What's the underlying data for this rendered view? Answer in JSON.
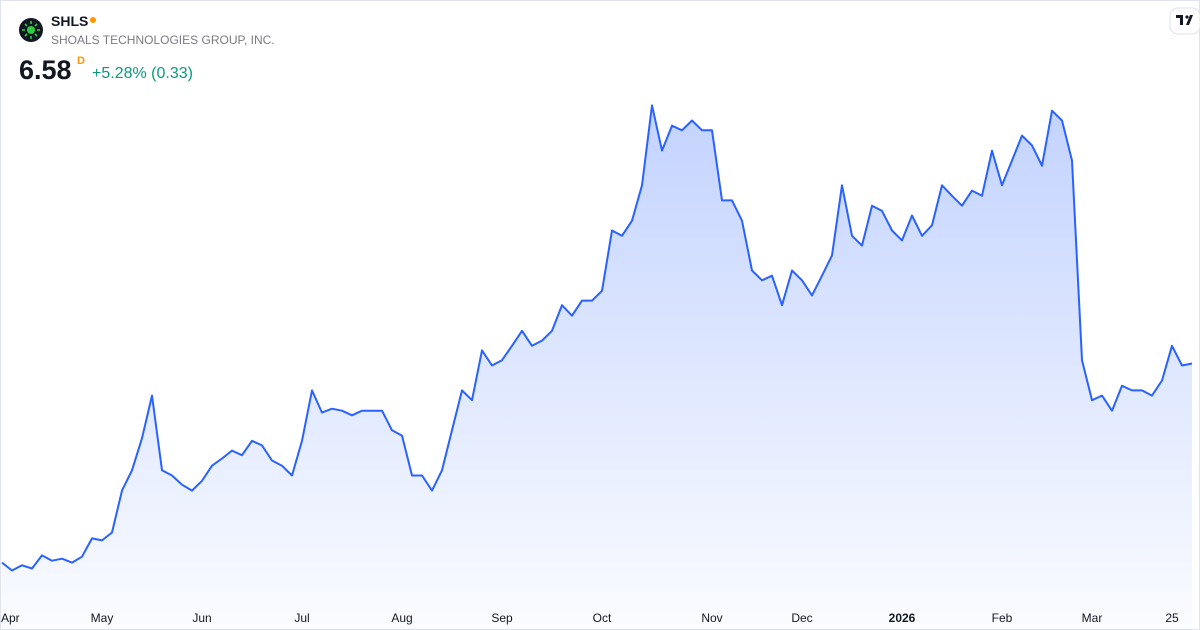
{
  "header": {
    "symbol": "SHLS",
    "company": "SHOALS TECHNOLOGIES GROUP, INC.",
    "price": "6.58",
    "interval": "D",
    "change": "+5.28% (0.33)"
  },
  "chart_data": {
    "type": "area",
    "color": "#2962ff",
    "ylim": [
      3,
      11
    ],
    "categories": [
      null,
      "Apr",
      null,
      null,
      null,
      null,
      null,
      null,
      null,
      null,
      "May",
      null,
      null,
      null,
      null,
      null,
      null,
      null,
      null,
      null,
      "Jun",
      null,
      null,
      null,
      null,
      null,
      null,
      null,
      null,
      null,
      "Jul",
      null,
      null,
      null,
      null,
      null,
      null,
      null,
      null,
      null,
      "Aug",
      null,
      null,
      null,
      null,
      null,
      null,
      null,
      null,
      null,
      "Sep",
      null,
      null,
      null,
      null,
      null,
      null,
      null,
      null,
      null,
      "Oct",
      null,
      null,
      null,
      null,
      null,
      null,
      null,
      null,
      null,
      null,
      "Nov",
      null,
      null,
      null,
      null,
      null,
      null,
      null,
      null,
      "Dec",
      null,
      null,
      null,
      null,
      null,
      null,
      null,
      null,
      null,
      "2026",
      null,
      null,
      null,
      null,
      null,
      null,
      null,
      null,
      null,
      "Feb",
      null,
      null,
      null,
      null,
      null,
      null,
      null,
      null,
      "Mar",
      null,
      null,
      null,
      null,
      null,
      null,
      null,
      "25",
      null,
      null
    ],
    "values": [
      3.54,
      3.42,
      3.5,
      3.45,
      3.65,
      3.57,
      3.6,
      3.54,
      3.63,
      3.91,
      3.88,
      4.0,
      4.64,
      4.95,
      5.44,
      6.09,
      4.95,
      4.87,
      4.73,
      4.64,
      4.79,
      5.02,
      5.13,
      5.25,
      5.18,
      5.4,
      5.33,
      5.1,
      5.02,
      4.87,
      5.4,
      6.17,
      5.83,
      5.89,
      5.86,
      5.79,
      5.86,
      5.86,
      5.86,
      5.56,
      5.48,
      4.87,
      4.87,
      4.64,
      4.95,
      5.56,
      6.17,
      6.02,
      6.78,
      6.55,
      6.63,
      6.85,
      7.08,
      6.85,
      6.93,
      7.08,
      7.47,
      7.31,
      7.54,
      7.54,
      7.69,
      8.61,
      8.53,
      8.76,
      9.3,
      10.52,
      9.83,
      10.21,
      10.14,
      10.29,
      10.14,
      10.14,
      9.07,
      9.07,
      8.76,
      8.0,
      7.85,
      7.92,
      7.47,
      8.0,
      7.85,
      7.62,
      7.92,
      8.23,
      9.3,
      8.53,
      8.38,
      8.99,
      8.91,
      8.61,
      8.46,
      8.84,
      8.53,
      8.69,
      9.3,
      9.14,
      8.99,
      9.22,
      9.14,
      9.83,
      9.3,
      9.68,
      10.06,
      9.91,
      9.6,
      10.44,
      10.29,
      9.68,
      6.63,
      6.02,
      6.09,
      5.86,
      6.24,
      6.17,
      6.17,
      6.09,
      6.32,
      6.85,
      6.55,
      6.58
    ]
  }
}
